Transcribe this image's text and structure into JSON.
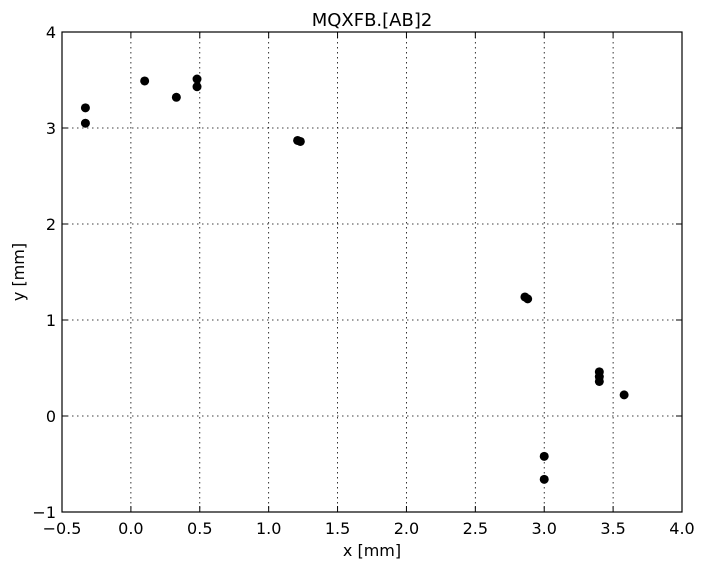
{
  "chart_data": {
    "type": "scatter",
    "title": "MQXFB.[AB]2",
    "xlabel": "x [mm]",
    "ylabel": "y [mm]",
    "xlim": [
      -0.5,
      4.0
    ],
    "ylim": [
      -1,
      4
    ],
    "x_ticks": [
      -0.5,
      0.0,
      0.5,
      1.0,
      1.5,
      2.0,
      2.5,
      3.0,
      3.5,
      4.0
    ],
    "x_tick_labels": [
      "−0.5",
      "0.0",
      "0.5",
      "1.0",
      "1.5",
      "2.0",
      "2.5",
      "3.0",
      "3.5",
      "4.0"
    ],
    "y_ticks": [
      -1,
      0,
      1,
      2,
      3,
      4
    ],
    "y_tick_labels": [
      "−1",
      "0",
      "1",
      "2",
      "3",
      "4"
    ],
    "grid": true,
    "marker_color": "#000000",
    "series": [
      {
        "points": [
          {
            "x": -0.33,
            "y": 3.21
          },
          {
            "x": -0.33,
            "y": 3.05
          },
          {
            "x": 0.1,
            "y": 3.49
          },
          {
            "x": 0.33,
            "y": 3.32
          },
          {
            "x": 0.48,
            "y": 3.51
          },
          {
            "x": 0.48,
            "y": 3.43
          },
          {
            "x": 1.21,
            "y": 2.87
          },
          {
            "x": 1.23,
            "y": 2.86
          },
          {
            "x": 2.86,
            "y": 1.24
          },
          {
            "x": 2.88,
            "y": 1.22
          },
          {
            "x": 3.4,
            "y": 0.46
          },
          {
            "x": 3.4,
            "y": 0.41
          },
          {
            "x": 3.4,
            "y": 0.36
          },
          {
            "x": 3.58,
            "y": 0.22
          },
          {
            "x": 3.0,
            "y": -0.42
          },
          {
            "x": 3.0,
            "y": -0.66
          }
        ]
      }
    ]
  }
}
